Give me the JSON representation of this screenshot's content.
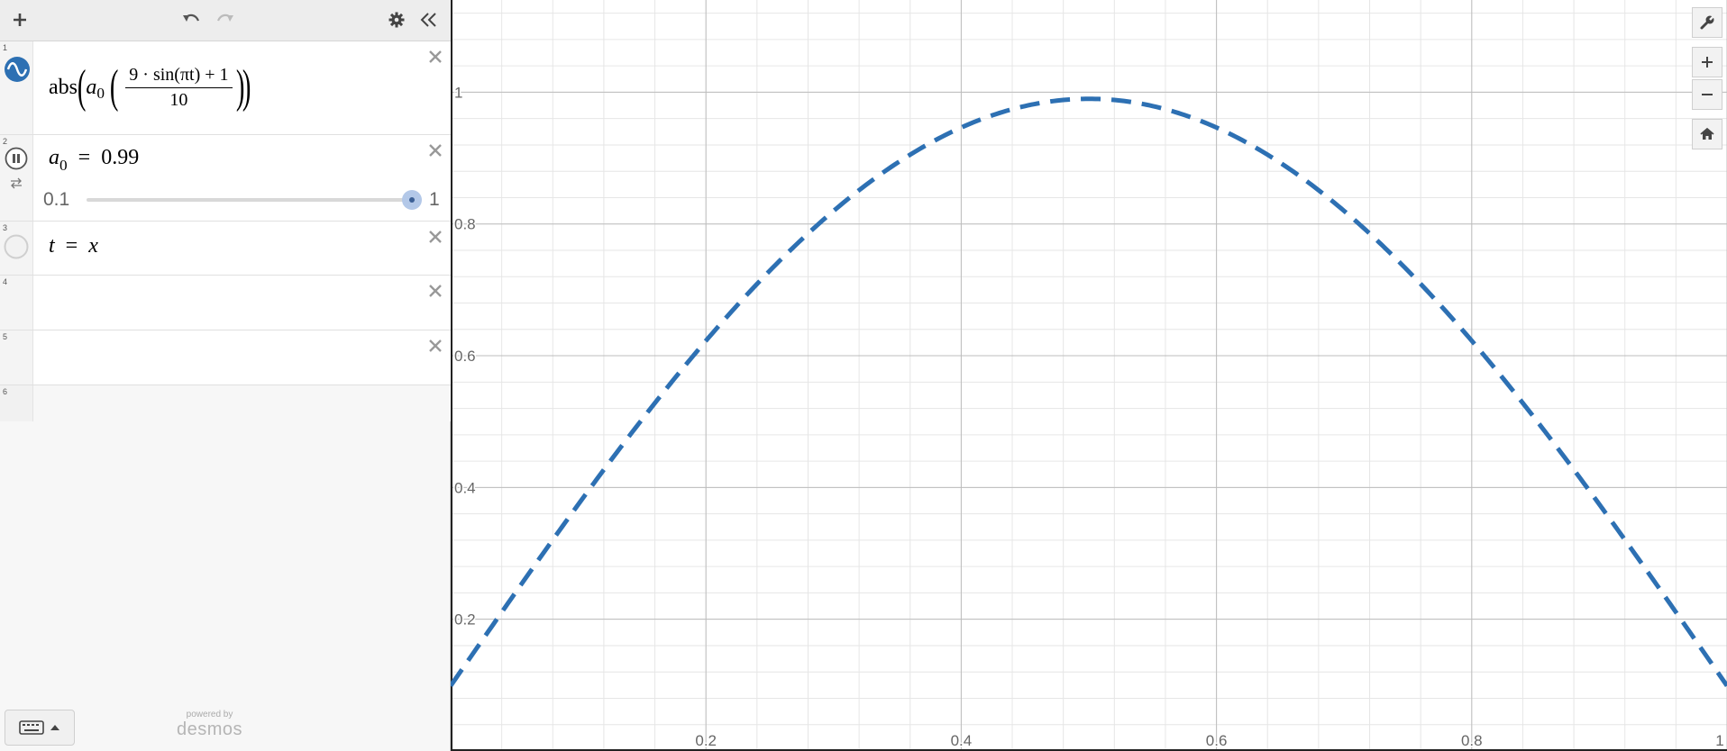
{
  "expressions": [
    {
      "index": "1",
      "func": "abs",
      "coef_base": "a",
      "coef_sub": "0",
      "numerator": "9 · sin(πt) + 1",
      "denominator": "10"
    },
    {
      "index": "2",
      "var_base": "a",
      "var_sub": "0",
      "equals": "=",
      "value": "0.99",
      "slider_min": "0.1",
      "slider_max": "1",
      "slider_fraction": 0.989
    },
    {
      "index": "3",
      "lhs": "t",
      "equals": "=",
      "rhs": "x"
    },
    {
      "index": "4"
    },
    {
      "index": "5"
    },
    {
      "index": "6"
    }
  ],
  "branding": {
    "powered_by": "powered by",
    "name": "desmos"
  },
  "graph": {
    "x_range": [
      0,
      1
    ],
    "y_range": [
      0,
      1.14
    ],
    "x_ticks": [
      "0.2",
      "0.4",
      "0.6",
      "0.8",
      "1"
    ],
    "y_ticks": [
      "0.2",
      "0.4",
      "0.6",
      "0.8",
      "1"
    ],
    "grid": true,
    "curve_color": "#2d70b3",
    "curve_style": "dashed",
    "a0": 0.99
  },
  "colors": {
    "expr1_icon": "#2d70b3",
    "slider_handle": "#b3c8e8"
  },
  "icons": [
    "plus-icon",
    "undo-icon",
    "redo-icon",
    "gear-icon",
    "collapse-icon",
    "close-icon",
    "wrench-icon",
    "zoom-in-icon",
    "zoom-out-icon",
    "home-icon",
    "keyboard-icon"
  ]
}
